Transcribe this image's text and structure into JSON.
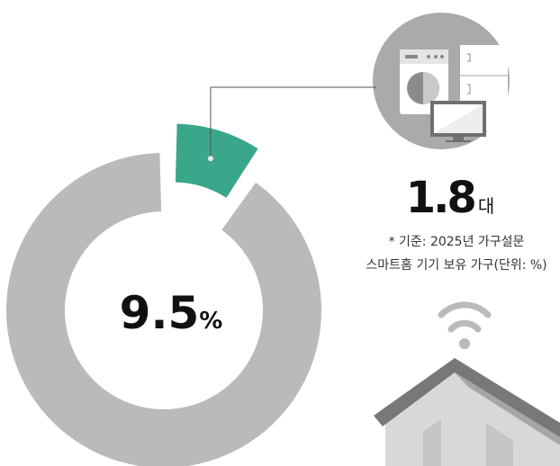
{
  "chart_data": {
    "type": "donut",
    "values": [
      9.5,
      90.5
    ],
    "value_unit": "%",
    "colors": [
      "#3aa68a",
      "#b9babc"
    ],
    "annotation": {
      "value": 1.8,
      "unit": "대"
    },
    "notes": [
      "* 기준: 2025년 가구설문",
      "스마트홈 기기 보유 가구(단위: %)"
    ]
  }
}
